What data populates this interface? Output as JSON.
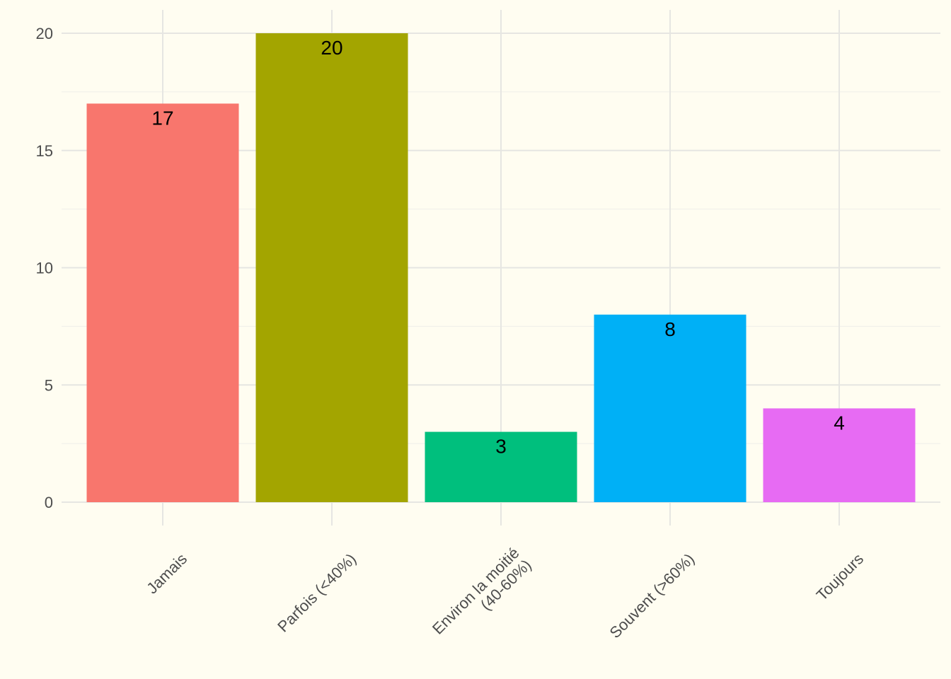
{
  "chart_data": {
    "type": "bar",
    "categories": [
      "Jamais",
      "Parfois (<40%)",
      "Environ la moitié\n(40-60%)",
      "Souvent (>60%)",
      "Toujours"
    ],
    "values": [
      17,
      20,
      3,
      8,
      4
    ],
    "colors": [
      "#f8766d",
      "#a3a500",
      "#00bf7d",
      "#00b0f6",
      "#e76bf3"
    ],
    "ylim": [
      0,
      20
    ],
    "yticks": [
      0,
      5,
      10,
      15,
      20
    ],
    "grid": true,
    "legend": "none",
    "title": "",
    "xlabel": "",
    "ylabel": ""
  }
}
